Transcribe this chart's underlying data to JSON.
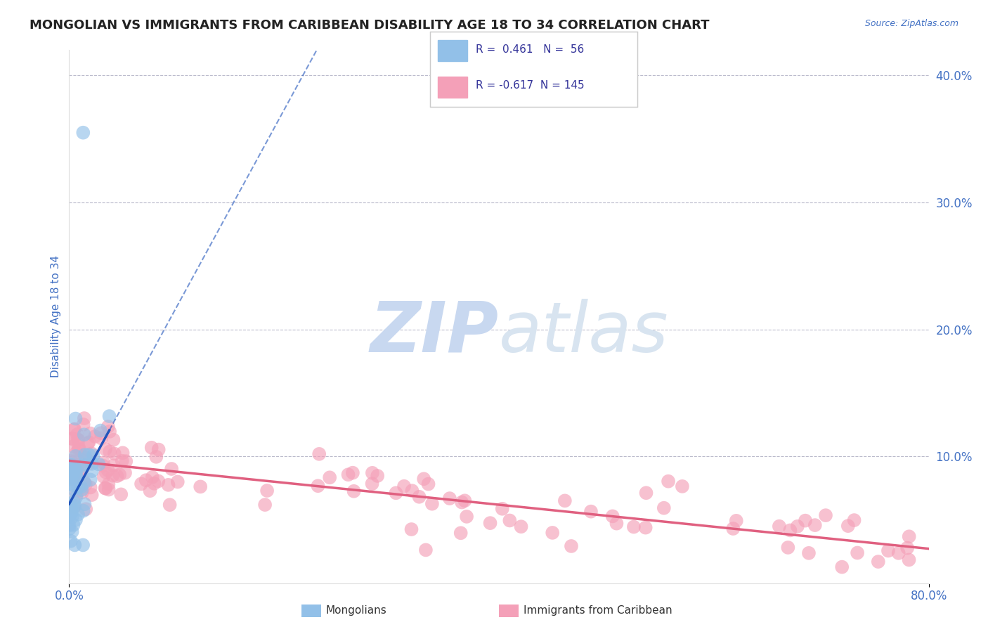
{
  "title": "MONGOLIAN VS IMMIGRANTS FROM CARIBBEAN DISABILITY AGE 18 TO 34 CORRELATION CHART",
  "source": "Source: ZipAtlas.com",
  "ylabel": "Disability Age 18 to 34",
  "xlim": [
    0.0,
    0.8
  ],
  "ylim": [
    0.0,
    0.42
  ],
  "mongolian_R": 0.461,
  "mongolian_N": 56,
  "caribbean_R": -0.617,
  "caribbean_N": 145,
  "blue_color": "#92C0E8",
  "pink_color": "#F4A0B8",
  "blue_line_color": "#2255BB",
  "pink_line_color": "#E06080",
  "title_color": "#222222",
  "axis_tick_color": "#4472C4",
  "legend_text_color": "#333399",
  "watermark_color": "#C8D8F0",
  "background_color": "#FFFFFF",
  "grid_color": "#BBBBCC",
  "ytick_positions": [
    0.0,
    0.1,
    0.2,
    0.3,
    0.4
  ],
  "ytick_labels_right": [
    "",
    "10.0%",
    "20.0%",
    "30.0%",
    "40.0%"
  ],
  "xtick_labels": [
    "0.0%",
    "80.0%"
  ]
}
